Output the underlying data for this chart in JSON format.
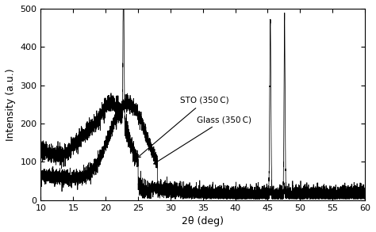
{
  "xlim": [
    10,
    60
  ],
  "ylim": [
    0,
    500
  ],
  "xlabel": "2θ (deg)",
  "ylabel": "Intensity (a.u.)",
  "xticks": [
    10,
    15,
    20,
    25,
    30,
    35,
    40,
    45,
    50,
    55,
    60
  ],
  "yticks": [
    0,
    100,
    200,
    300,
    400,
    500
  ],
  "label_sto": "STO (350 C)",
  "label_glass": "Glass (350 C)",
  "sharp_peak1": 22.75,
  "sharp_peak2": 45.4,
  "sharp_peak3": 47.6,
  "noise_amplitude_sto": 12,
  "noise_amplitude_glass": 10,
  "background_color": "#ffffff",
  "line_color": "#000000"
}
